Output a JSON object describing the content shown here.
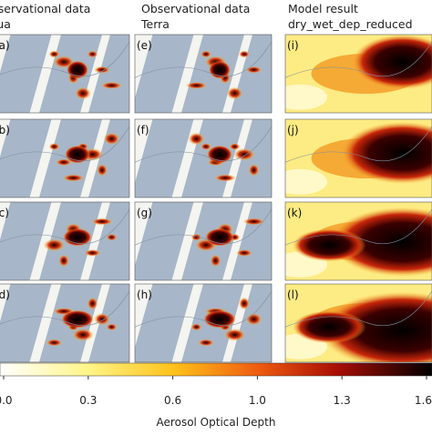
{
  "columns": [
    {
      "title": "Observational data",
      "subtitle": "Aqua"
    },
    {
      "title": "Observational data",
      "subtitle": "Terra"
    },
    {
      "title": "Model result",
      "subtitle": "dry_wet_dep_reduced"
    }
  ],
  "panels": [
    "(a)",
    "(e)",
    "(i)",
    "(b)",
    "(f)",
    "(j)",
    "(c)",
    "(g)",
    "(k)",
    "(d)",
    "(h)",
    "(l)"
  ],
  "colorbar": {
    "label": "Aerosol Optical Depth",
    "lim": [
      0,
      1.6
    ],
    "ticks": [
      {
        "value": 0,
        "label": "0.0"
      },
      {
        "value": 0.32,
        "label": "0.3"
      },
      {
        "value": 0.64,
        "label": "0.6"
      },
      {
        "value": 0.96,
        "label": "1.0"
      },
      {
        "value": 1.28,
        "label": "1.3"
      },
      1.6
    ]
  }
}
